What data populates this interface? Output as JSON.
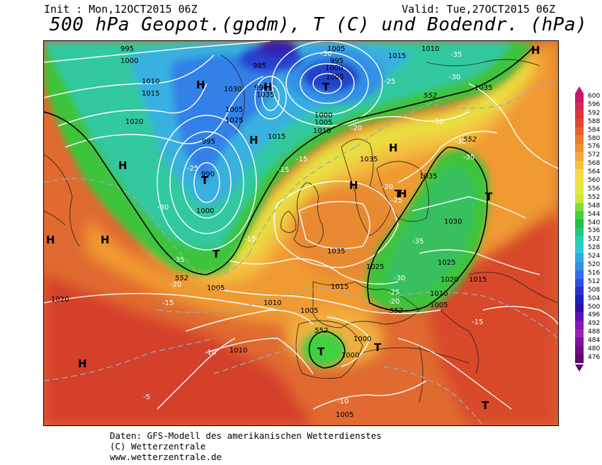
{
  "header": {
    "init": "Init : Mon,12OCT2015 06Z",
    "valid": "Valid: Tue,27OCT2015 06Z",
    "title": "500 hPa Geopot.(gpdm), T (C) und Bodendr. (hPa)"
  },
  "map": {
    "pressure_labels": [
      "995",
      "1000",
      "1010",
      "1015",
      "1020",
      "1005",
      "1025",
      "1030",
      "985",
      "990",
      "1035",
      "1005",
      "1000",
      "1010",
      "1015",
      "1020",
      "1025",
      "1030",
      "1035",
      "1000",
      "1005",
      "1010",
      "1020",
      "1015",
      "1000",
      "1005",
      "1010",
      "1020",
      "1000",
      "1005"
    ],
    "temp_labels": [
      "-30",
      "-35",
      "-25",
      "-20",
      "-15",
      "-10",
      "-5",
      "-30",
      "-25",
      "-35",
      "-30",
      "-25",
      "-20",
      "-15",
      "-20",
      "-30",
      "-35",
      "-25",
      "-15",
      "-10",
      "-5"
    ],
    "gpdm_labels": [
      "552",
      "552",
      "552",
      "552",
      "552"
    ],
    "high_low_markers": [
      "H",
      "H",
      "H",
      "H",
      "H",
      "H",
      "H",
      "H",
      "H",
      "H",
      "H",
      "T",
      "T",
      "T",
      "T",
      "T",
      "T",
      "T",
      "T"
    ]
  },
  "legend": {
    "values": [
      "600",
      "596",
      "592",
      "588",
      "584",
      "580",
      "576",
      "572",
      "568",
      "564",
      "560",
      "556",
      "552",
      "548",
      "544",
      "540",
      "536",
      "532",
      "528",
      "524",
      "520",
      "516",
      "512",
      "508",
      "504",
      "500",
      "496",
      "492",
      "488",
      "484",
      "480",
      "476"
    ],
    "colors": [
      "#c41a68",
      "#d42a55",
      "#e0323c",
      "#e04a2c",
      "#e86030",
      "#ea7a2c",
      "#f09030",
      "#f4a838",
      "#f6c040",
      "#f8d848",
      "#f0e040",
      "#e0ea40",
      "#c8e83a",
      "#80dc3a",
      "#40d040",
      "#20c040",
      "#20c880",
      "#28d0b0",
      "#30c8d8",
      "#30a8e0",
      "#3090e8",
      "#3070e8",
      "#3050e0",
      "#2a30d0",
      "#2020b8",
      "#3010a8",
      "#6010b0",
      "#8018b8",
      "#a020b8",
      "#8010a0",
      "#700c88",
      "#5a0a6b"
    ]
  },
  "footer": {
    "line1": "Daten: GFS-Modell des amerikanischen Wetterdienstes",
    "line2": "(C) Wetterzentrale",
    "line3": "www.wetterzentrale.de"
  }
}
